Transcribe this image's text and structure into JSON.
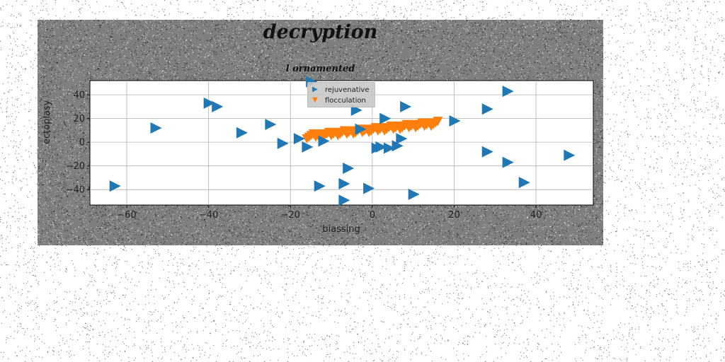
{
  "figure": {
    "title": "decryption",
    "subtitle": "l ornamented"
  },
  "chart_data": {
    "type": "scatter",
    "title": "l ornamented",
    "xlabel": "biassing",
    "ylabel": "ectoplasy",
    "xlim": [
      -69,
      54
    ],
    "ylim": [
      -53,
      52
    ],
    "xticks": [
      -60,
      -40,
      -20,
      0,
      20,
      40
    ],
    "yticks": [
      40,
      20,
      0,
      -20,
      -40
    ],
    "grid": true,
    "legend_position": "top-center",
    "series": [
      {
        "name": "rejuvenative",
        "marker": "triangle-right",
        "color": "#1f77b4",
        "points": [
          [
            -63,
            -37
          ],
          [
            -53,
            12
          ],
          [
            -40,
            33
          ],
          [
            -38,
            30
          ],
          [
            -32,
            8
          ],
          [
            -25,
            15
          ],
          [
            -22,
            -1
          ],
          [
            -18,
            3
          ],
          [
            -16,
            -4
          ],
          [
            -12,
            1
          ],
          [
            -13,
            -37
          ],
          [
            -7,
            -35
          ],
          [
            -7,
            -49
          ],
          [
            -6,
            -22
          ],
          [
            -4,
            27
          ],
          [
            -3,
            11
          ],
          [
            -1,
            -39
          ],
          [
            1,
            -5
          ],
          [
            2,
            -4
          ],
          [
            3,
            20
          ],
          [
            4,
            -5
          ],
          [
            6,
            -3
          ],
          [
            7,
            3
          ],
          [
            8,
            30
          ],
          [
            10,
            -44
          ],
          [
            20,
            18
          ],
          [
            28,
            28
          ],
          [
            28,
            -8
          ],
          [
            33,
            43
          ],
          [
            33,
            -17
          ],
          [
            37,
            -34
          ],
          [
            48,
            -11
          ],
          [
            -15,
            51
          ]
        ]
      },
      {
        "name": "flocculation",
        "marker": "triangle-down",
        "color": "#ff7f0e",
        "x_range": [
          -16,
          16
        ],
        "y_line": {
          "slope": 0.35,
          "intercept": 10.5
        },
        "points": 60
      }
    ]
  }
}
